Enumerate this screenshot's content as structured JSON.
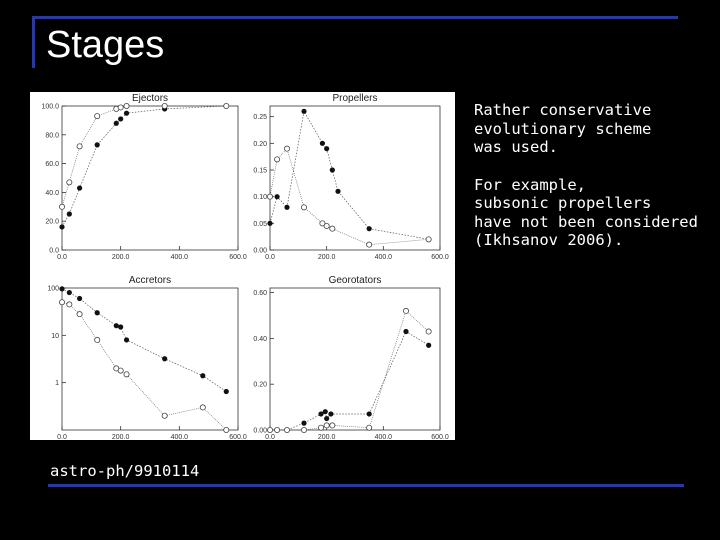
{
  "slide": {
    "title": "Stages",
    "paragraph1": "Rather conservative\nevolutionary scheme\nwas used.",
    "paragraph2": "For example,\nsubsonic propellers\nhave not been considered\n(Ikhsanov 2006).",
    "reference": "astro-ph/9910114"
  },
  "chart_data": [
    {
      "type": "line",
      "title": "Ejectors",
      "xlim": [
        0,
        600
      ],
      "ylim": [
        0,
        100
      ],
      "yscale": "linear",
      "xticks": [
        0,
        200,
        400,
        600
      ],
      "xtick_labels": [
        "0.0",
        "200.0",
        "400.0",
        "600.0"
      ],
      "yticks": [
        0,
        20,
        40,
        60,
        80,
        100
      ],
      "ytick_labels": [
        "0.0",
        "20.0",
        "40.0",
        "60.0",
        "80.0",
        "100.0"
      ],
      "series": [
        {
          "marker": "filled",
          "x": [
            0,
            25,
            60,
            120,
            185,
            200,
            220,
            350,
            560
          ],
          "y": [
            16,
            25,
            43,
            73,
            88,
            91,
            95,
            98,
            100
          ]
        },
        {
          "marker": "open",
          "x": [
            0,
            25,
            60,
            120,
            185,
            200,
            220,
            350,
            560
          ],
          "y": [
            30,
            47,
            72,
            93,
            98,
            99,
            100,
            100,
            100
          ]
        }
      ]
    },
    {
      "type": "line",
      "title": "Propellers",
      "xlim": [
        0,
        600
      ],
      "ylim": [
        0,
        0.27
      ],
      "yscale": "linear",
      "xticks": [
        0,
        200,
        400,
        600
      ],
      "xtick_labels": [
        "0.0",
        "200.0",
        "400.0",
        "600.0"
      ],
      "yticks": [
        0,
        0.05,
        0.1,
        0.15,
        0.2,
        0.25
      ],
      "ytick_labels": [
        "0.00",
        "0.05",
        "0.10",
        "0.15",
        "0.20",
        "0.25"
      ],
      "series": [
        {
          "marker": "filled",
          "x": [
            0,
            25,
            60,
            120,
            185,
            200,
            220,
            240,
            350,
            560
          ],
          "y": [
            0.05,
            0.1,
            0.08,
            0.26,
            0.2,
            0.19,
            0.15,
            0.11,
            0.04,
            0.02
          ]
        },
        {
          "marker": "open",
          "x": [
            0,
            25,
            60,
            120,
            185,
            200,
            220,
            350,
            560
          ],
          "y": [
            0.1,
            0.17,
            0.19,
            0.08,
            0.05,
            0.045,
            0.04,
            0.01,
            0.02
          ]
        }
      ]
    },
    {
      "type": "line",
      "title": "Accretors",
      "xlim": [
        0,
        600
      ],
      "ylim": [
        0.1,
        100
      ],
      "yscale": "log",
      "xticks": [
        0,
        200,
        400,
        600
      ],
      "xtick_labels": [
        "0.0",
        "200.0",
        "400.0",
        "600.0"
      ],
      "yticks": [
        1,
        10,
        100
      ],
      "ytick_labels": [
        "1",
        "10",
        "100"
      ],
      "series": [
        {
          "marker": "filled",
          "x": [
            0,
            25,
            60,
            120,
            185,
            200,
            220,
            350,
            480,
            560
          ],
          "y": [
            96,
            80,
            60,
            30,
            16,
            15,
            8,
            3.2,
            1.4,
            0.65
          ]
        },
        {
          "marker": "open",
          "x": [
            0,
            25,
            60,
            120,
            185,
            200,
            220,
            350,
            480,
            560
          ],
          "y": [
            50,
            45,
            28,
            8,
            2,
            1.8,
            1.5,
            0.2,
            0.3,
            0.1
          ]
        }
      ]
    },
    {
      "type": "line",
      "title": "Georotators",
      "xlim": [
        0,
        600
      ],
      "ylim": [
        0,
        0.62
      ],
      "yscale": "linear",
      "xticks": [
        0,
        200,
        400,
        600
      ],
      "xtick_labels": [
        "0.0",
        "200.0",
        "400.0",
        "600.0"
      ],
      "yticks": [
        0,
        0.2,
        0.4,
        0.6
      ],
      "ytick_labels": [
        "0.00",
        "0.20",
        "0.40",
        "0.60"
      ],
      "series": [
        {
          "marker": "filled",
          "x": [
            0,
            25,
            60,
            120,
            180,
            195,
            200,
            215,
            350,
            480,
            560
          ],
          "y": [
            0,
            0,
            0,
            0.03,
            0.07,
            0.08,
            0.05,
            0.07,
            0.07,
            0.43,
            0.37
          ]
        },
        {
          "marker": "open",
          "x": [
            0,
            25,
            60,
            120,
            180,
            200,
            220,
            350,
            480,
            560
          ],
          "y": [
            0,
            0,
            0,
            0,
            0.01,
            0.02,
            0.02,
            0.01,
            0.52,
            0.43
          ]
        }
      ]
    }
  ]
}
